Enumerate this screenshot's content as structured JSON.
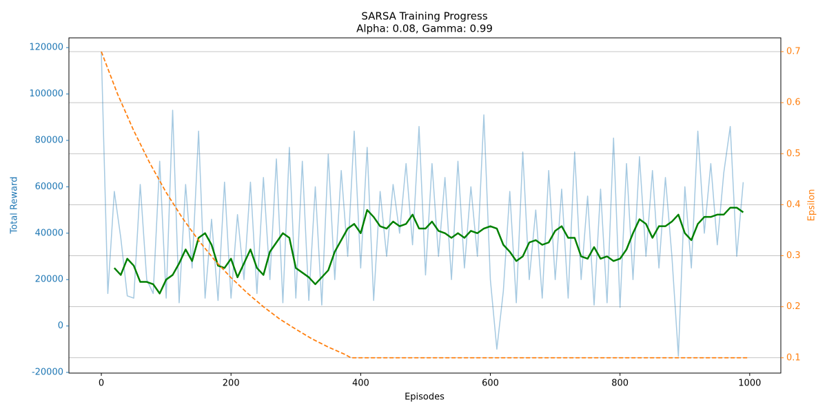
{
  "chart_data": {
    "type": "line",
    "title": "SARSA Training Progress",
    "subtitle": "Alpha: 0.08, Gamma: 0.99",
    "xlabel": "Episodes",
    "ylabel": "Total Reward",
    "y2label": "Epsilon",
    "ycolor": "#1f77b4",
    "y2color": "#ff7f0e",
    "xlim": [
      -50,
      1048
    ],
    "xticks": [
      0,
      200,
      400,
      600,
      800,
      1000
    ],
    "ylim": [
      -20300,
      124200
    ],
    "yticks": [
      -20000,
      0,
      20000,
      40000,
      60000,
      80000,
      100000,
      120000
    ],
    "y2lim": [
      0.07,
      0.727
    ],
    "y2ticks": [
      0.1,
      0.2,
      0.3,
      0.4,
      0.5,
      0.6,
      0.7
    ],
    "grid": "y2",
    "series": [
      {
        "color": "#1f77b4",
        "alpha": 0.4,
        "width": 1.5,
        "dash": "solid",
        "axis": "y",
        "x": [
          0,
          10,
          20,
          30,
          40,
          50,
          60,
          70,
          80,
          90,
          100,
          110,
          120,
          130,
          140,
          150,
          160,
          170,
          180,
          190,
          200,
          210,
          220,
          230,
          240,
          250,
          260,
          270,
          280,
          290,
          300,
          310,
          320,
          330,
          340,
          350,
          360,
          370,
          380,
          390,
          400,
          410,
          420,
          430,
          440,
          450,
          460,
          470,
          480,
          490,
          500,
          510,
          520,
          530,
          540,
          550,
          560,
          570,
          580,
          590,
          600,
          610,
          620,
          630,
          640,
          650,
          660,
          670,
          680,
          690,
          700,
          710,
          720,
          730,
          740,
          750,
          760,
          770,
          780,
          790,
          800,
          810,
          820,
          830,
          840,
          850,
          860,
          870,
          880,
          890,
          900,
          910,
          920,
          930,
          940,
          950,
          960,
          970,
          980,
          990
        ],
        "values": [
          118000,
          14000,
          58000,
          38000,
          13000,
          12000,
          61000,
          20000,
          14000,
          71000,
          12000,
          93000,
          10000,
          61000,
          25000,
          84000,
          12000,
          46000,
          11000,
          62000,
          12000,
          48000,
          20000,
          62000,
          14000,
          64000,
          20000,
          72000,
          10000,
          77000,
          12000,
          71000,
          11000,
          60000,
          9000,
          74000,
          20000,
          67000,
          30000,
          84000,
          25000,
          77000,
          11000,
          58000,
          30000,
          61000,
          40000,
          70000,
          35000,
          86000,
          22000,
          70000,
          30000,
          64000,
          20000,
          71000,
          25000,
          60000,
          30000,
          91000,
          20000,
          -10000,
          15000,
          58000,
          10000,
          75000,
          20000,
          50000,
          12000,
          67000,
          20000,
          59000,
          12000,
          75000,
          20000,
          56000,
          9000,
          59000,
          10000,
          81000,
          8000,
          70000,
          20000,
          73000,
          30000,
          67000,
          25000,
          64000,
          30000,
          -13000,
          60000,
          25000,
          84000,
          40000,
          70000,
          35000,
          66000,
          86000,
          30000,
          62000
        ]
      },
      {
        "color": "#008000",
        "alpha": 1,
        "width": 2.5,
        "dash": "solid",
        "axis": "y",
        "x": [
          20,
          30,
          40,
          50,
          60,
          70,
          80,
          90,
          100,
          110,
          120,
          130,
          140,
          150,
          160,
          170,
          180,
          190,
          200,
          210,
          220,
          230,
          240,
          250,
          260,
          270,
          280,
          290,
          300,
          310,
          320,
          330,
          340,
          350,
          360,
          370,
          380,
          390,
          400,
          410,
          420,
          430,
          440,
          450,
          460,
          470,
          480,
          490,
          500,
          510,
          520,
          530,
          540,
          550,
          560,
          570,
          580,
          590,
          600,
          610,
          620,
          630,
          640,
          650,
          660,
          670,
          680,
          690,
          700,
          710,
          720,
          730,
          740,
          750,
          760,
          770,
          780,
          790,
          800,
          810,
          820,
          830,
          840,
          850,
          860,
          870,
          880,
          890,
          900,
          910,
          920,
          930,
          940,
          950,
          960,
          970,
          980,
          990
        ],
        "values": [
          25000,
          22000,
          29000,
          26000,
          19000,
          19000,
          18000,
          14000,
          20000,
          22000,
          27000,
          33000,
          28000,
          38000,
          40000,
          35000,
          26000,
          25000,
          29000,
          21000,
          27000,
          33000,
          25000,
          22000,
          32000,
          36000,
          40000,
          38000,
          25000,
          23000,
          21000,
          18000,
          21000,
          24000,
          32000,
          37000,
          42000,
          44000,
          40000,
          50000,
          47000,
          43000,
          42000,
          45000,
          43000,
          44000,
          48000,
          42000,
          42000,
          45000,
          41000,
          40000,
          38000,
          40000,
          38000,
          41000,
          40000,
          42000,
          43000,
          42000,
          35000,
          32000,
          28000,
          30000,
          36000,
          37000,
          35000,
          36000,
          41000,
          43000,
          38000,
          38000,
          30000,
          29000,
          34000,
          29000,
          30000,
          28000,
          29000,
          33000,
          40000,
          46000,
          44000,
          38000,
          43000,
          43000,
          45000,
          48000,
          40000,
          37000,
          44000,
          47000,
          47000,
          48000,
          48000,
          51000,
          51000,
          49000
        ]
      },
      {
        "color": "#ff7f0e",
        "alpha": 1,
        "width": 1.8,
        "dash": "dashed",
        "axis": "y2",
        "x": [
          0,
          25,
          50,
          75,
          100,
          125,
          150,
          175,
          200,
          225,
          250,
          275,
          300,
          325,
          350,
          375,
          385,
          999
        ],
        "values": [
          0.7,
          0.617,
          0.545,
          0.481,
          0.424,
          0.374,
          0.33,
          0.291,
          0.257,
          0.227,
          0.2,
          0.176,
          0.156,
          0.137,
          0.121,
          0.107,
          0.1,
          0.1
        ]
      }
    ]
  }
}
